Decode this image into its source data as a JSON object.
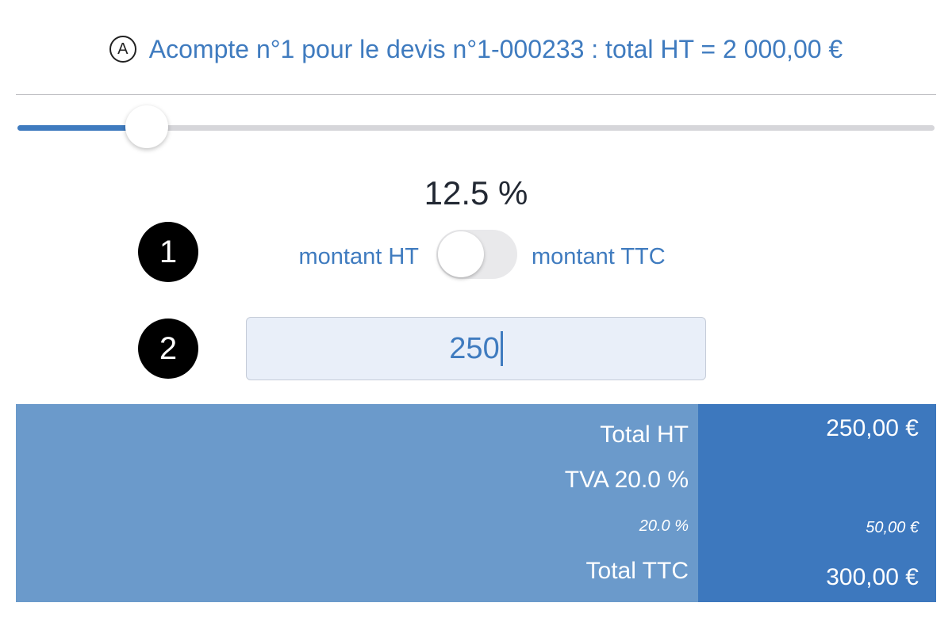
{
  "header": {
    "icon": "A",
    "title": "Acompte n°1 pour le devis n°1-000233 : total HT = 2 000,00 €"
  },
  "slider": {
    "percent_label": "12.5 %"
  },
  "toggle": {
    "badge": "1",
    "left_label": "montant HT",
    "right_label": "montant TTC"
  },
  "input": {
    "badge": "2",
    "value": "250"
  },
  "summary": {
    "total_ht": {
      "label": "Total HT",
      "amount": "250,00 €"
    },
    "tva": {
      "label": "TVA 20.0 %",
      "rate": "20.0 %",
      "amount": "50,00 €"
    },
    "total_ttc": {
      "label": "Total TTC",
      "amount": "300,00 €"
    }
  }
}
